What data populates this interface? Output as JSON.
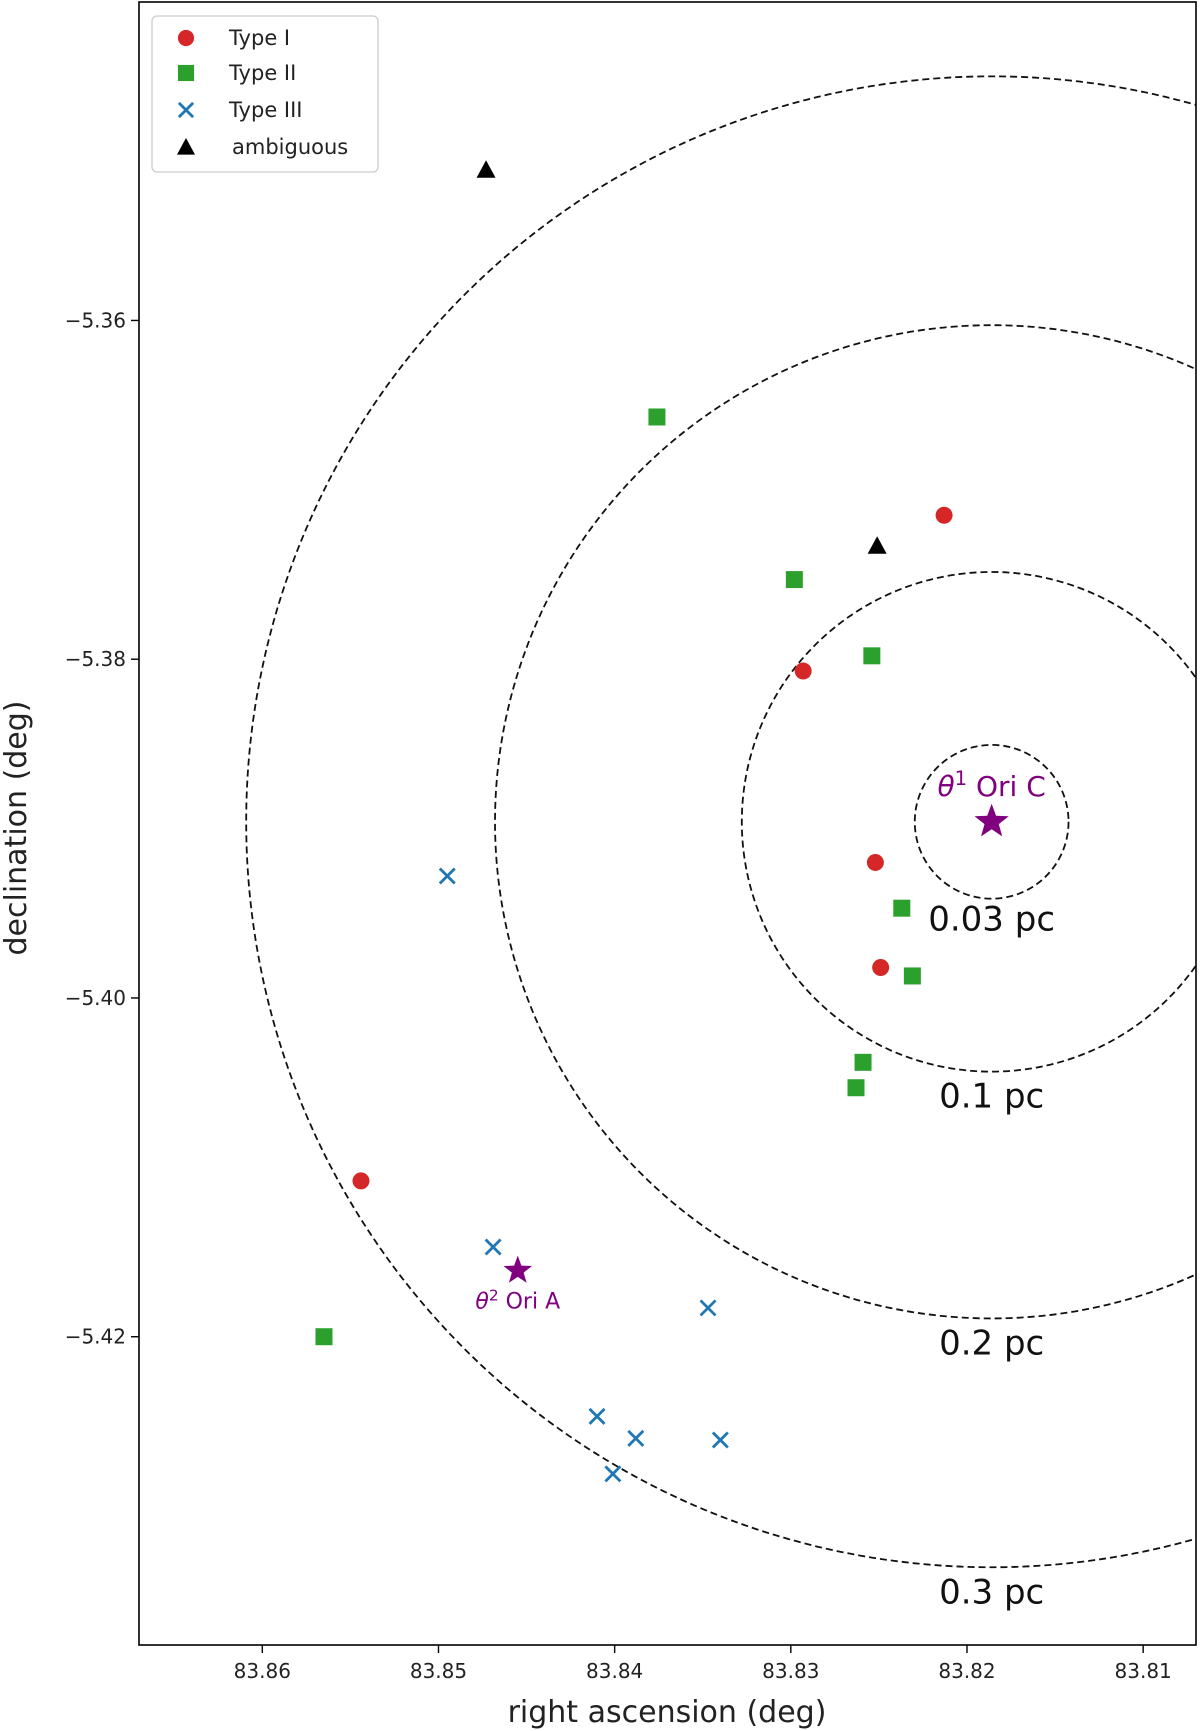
{
  "chart_data": {
    "type": "scatter",
    "title": "",
    "xlabel": "right ascension (deg)",
    "ylabel": "declination (deg)",
    "xlim": [
      83.867,
      83.807
    ],
    "ylim": [
      -5.4382,
      -5.3412
    ],
    "x_inverted": true,
    "grid": false,
    "legend_position": "upper left",
    "xticks": [
      83.86,
      83.85,
      83.84,
      83.83,
      83.82,
      83.81
    ],
    "xtick_labels": [
      "83.86",
      "83.85",
      "83.84",
      "83.83",
      "83.82",
      "83.81"
    ],
    "yticks": [
      -5.36,
      -5.38,
      -5.4,
      -5.42
    ],
    "ytick_labels": [
      "−5.36",
      "−5.38",
      "−5.40",
      "−5.42"
    ],
    "series": [
      {
        "name": "Type I",
        "marker": "circle",
        "color": "#d62728",
        "points": [
          [
            83.8213,
            -5.3715
          ],
          [
            83.8293,
            -5.3807
          ],
          [
            83.8252,
            -5.392
          ],
          [
            83.8249,
            -5.3982
          ],
          [
            83.8544,
            -5.4108
          ]
        ]
      },
      {
        "name": "Type II",
        "marker": "square",
        "color": "#2ca02c",
        "points": [
          [
            83.8376,
            -5.3657
          ],
          [
            83.8298,
            -5.3753
          ],
          [
            83.8254,
            -5.3798
          ],
          [
            83.8237,
            -5.3947
          ],
          [
            83.8231,
            -5.3987
          ],
          [
            83.8259,
            -5.4038
          ],
          [
            83.8263,
            -5.4053
          ],
          [
            83.8565,
            -5.42
          ]
        ]
      },
      {
        "name": "Type III",
        "marker": "x",
        "color": "#1f77b4",
        "points": [
          [
            83.8495,
            -5.3928
          ],
          [
            83.8469,
            -5.4147
          ],
          [
            83.8347,
            -5.4183
          ],
          [
            83.841,
            -5.4247
          ],
          [
            83.8388,
            -5.426
          ],
          [
            83.834,
            -5.4261
          ],
          [
            83.8401,
            -5.4281
          ]
        ]
      },
      {
        "name": "ambiguous",
        "marker": "triangle",
        "color": "#000000",
        "points": [
          [
            83.8473,
            -5.3511
          ],
          [
            83.8251,
            -5.3733
          ]
        ]
      }
    ],
    "reference_stars": [
      {
        "name": "θ¹ Ori C",
        "label_base": "θ",
        "label_sup": "1",
        "label_rest": " Ori C",
        "ra": 83.8186,
        "dec": -5.3896,
        "color": "#800080"
      },
      {
        "name": "θ² Ori A",
        "label_base": "θ",
        "label_sup": "2",
        "label_rest": " Ori A",
        "ra": 83.8455,
        "dec": -5.4161,
        "color": "#800080"
      }
    ],
    "rings": [
      {
        "label": "0.03 pc",
        "radius_deg": 0.00454
      },
      {
        "label": "0.1 pc",
        "radius_deg": 0.01475
      },
      {
        "label": "0.2 pc",
        "radius_deg": 0.02932
      },
      {
        "label": "0.3 pc",
        "radius_deg": 0.04401
      }
    ],
    "ring_center": [
      83.8186,
      -5.3896
    ]
  }
}
